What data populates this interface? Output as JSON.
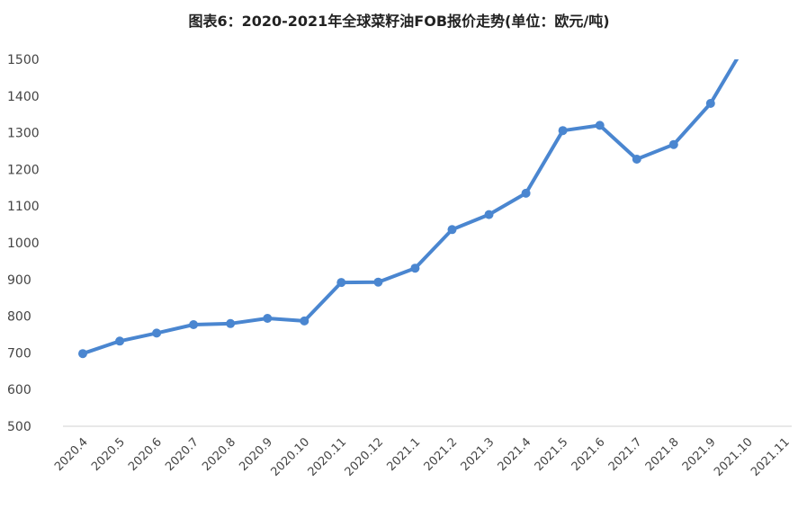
{
  "chart_data": {
    "type": "line",
    "title": "图表6：2020-2021年全球菜籽油FOB报价走势(单位：欧元/吨)",
    "categories": [
      "2020.4",
      "2020.5",
      "2020.6",
      "2020.7",
      "2020.8",
      "2020.9",
      "2020.10",
      "2020.11",
      "2020.12",
      "2021.1",
      "2021.2",
      "2021.3",
      "2021.4",
      "2021.5",
      "2021.6",
      "2021.7",
      "2021.8",
      "2021.9",
      "2021.10",
      "2021.11"
    ],
    "series": [
      {
        "values": [
          698,
          732,
          754,
          777,
          780,
          794,
          787,
          892,
          893,
          931,
          1036,
          1077,
          1135,
          1306,
          1320,
          1228,
          1268,
          1380,
          1550,
          null
        ]
      }
    ],
    "ylim": [
      500,
      1500
    ],
    "yticks": [
      500,
      600,
      700,
      800,
      900,
      1000,
      1100,
      1200,
      1300,
      1400,
      1500
    ],
    "line_color": "#4a86d0",
    "grid": false
  }
}
